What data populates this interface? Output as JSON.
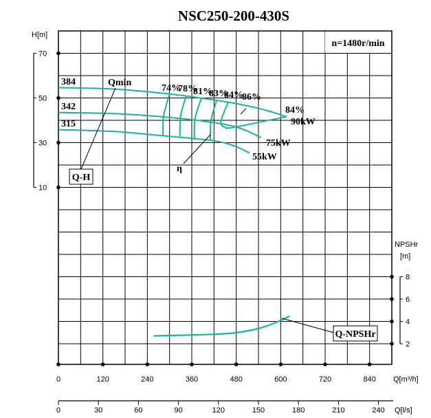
{
  "chart_data": {
    "type": "line",
    "title": "NSC250-200-430S",
    "speed_label": "n=1480r/min",
    "curve_color": "#1bb39a",
    "grid": true,
    "x_axis": {
      "label": "Q[m³/h]",
      "ticks": [
        "0",
        "120",
        "240",
        "360",
        "480",
        "600",
        "720",
        "840"
      ],
      "range": [
        0,
        900
      ]
    },
    "x2_axis": {
      "label": "Q[l/s]",
      "ticks": [
        "0",
        "30",
        "60",
        "90",
        "120",
        "150",
        "180",
        "210",
        "240"
      ],
      "range": [
        0,
        250
      ]
    },
    "y_axis": {
      "label": "H[m]",
      "ticks": [
        "70",
        "50",
        "30",
        "10"
      ],
      "range": [
        -70,
        80
      ]
    },
    "y2_axis": {
      "label_top": "NPSHr",
      "label_bottom": "[m]",
      "ticks": [
        "8",
        "6",
        "4",
        "2"
      ],
      "range": [
        2,
        8
      ]
    },
    "series": [
      {
        "name": "384",
        "power": "90kW",
        "points": [
          [
            0,
            54.6
          ],
          [
            150,
            54.0
          ],
          [
            300,
            51.8
          ],
          [
            400,
            49.6
          ],
          [
            486,
            47.3
          ],
          [
            560,
            44.5
          ],
          [
            616,
            41.6
          ]
        ]
      },
      {
        "name": "342",
        "power": "75kW",
        "points": [
          [
            0,
            43.5
          ],
          [
            150,
            43.0
          ],
          [
            300,
            41.3
          ],
          [
            423,
            38.9
          ],
          [
            490,
            36.5
          ],
          [
            547,
            32.3
          ]
        ]
      },
      {
        "name": "315",
        "power": "55kW",
        "points": [
          [
            0,
            35.8
          ],
          [
            150,
            35.0
          ],
          [
            282,
            33.1
          ],
          [
            412,
            31.0
          ],
          [
            470,
            28.8
          ],
          [
            516,
            25.4
          ]
        ]
      }
    ],
    "efficiency": [
      {
        "label": "74%",
        "points": [
          [
            300,
            51.8
          ],
          [
            284,
            42
          ],
          [
            282,
            33.1
          ]
        ]
      },
      {
        "label": "78%",
        "points": [
          [
            345,
            50.9
          ],
          [
            330,
            42
          ],
          [
            328,
            32.7
          ]
        ]
      },
      {
        "label": "81%",
        "points": [
          [
            386,
            49.9
          ],
          [
            369,
            41
          ],
          [
            367,
            32.0
          ]
        ]
      },
      {
        "label": "83%",
        "points": [
          [
            427,
            48.8
          ],
          [
            412,
            40
          ],
          [
            410,
            31.1
          ]
        ]
      },
      {
        "label": "84%",
        "points": [
          [
            458,
            48.0
          ],
          [
            441,
            41
          ],
          [
            440,
            38
          ],
          [
            452,
            36.8
          ],
          [
            470,
            36.8
          ],
          [
            616,
            41.6
          ]
        ]
      },
      {
        "label": "86%",
        "points": []
      },
      {
        "label": "84%",
        "points": []
      }
    ],
    "npshr": {
      "name": "Q-NPSHr",
      "points": [
        [
          257,
          2.7
        ],
        [
          350,
          2.78
        ],
        [
          420,
          2.85
        ],
        [
          482,
          3.0
        ],
        [
          544,
          3.4
        ],
        [
          590,
          3.95
        ],
        [
          624,
          4.47
        ]
      ]
    },
    "annotations": {
      "qh": "Q-H",
      "qmin": "Qmin",
      "eta": "η"
    }
  }
}
